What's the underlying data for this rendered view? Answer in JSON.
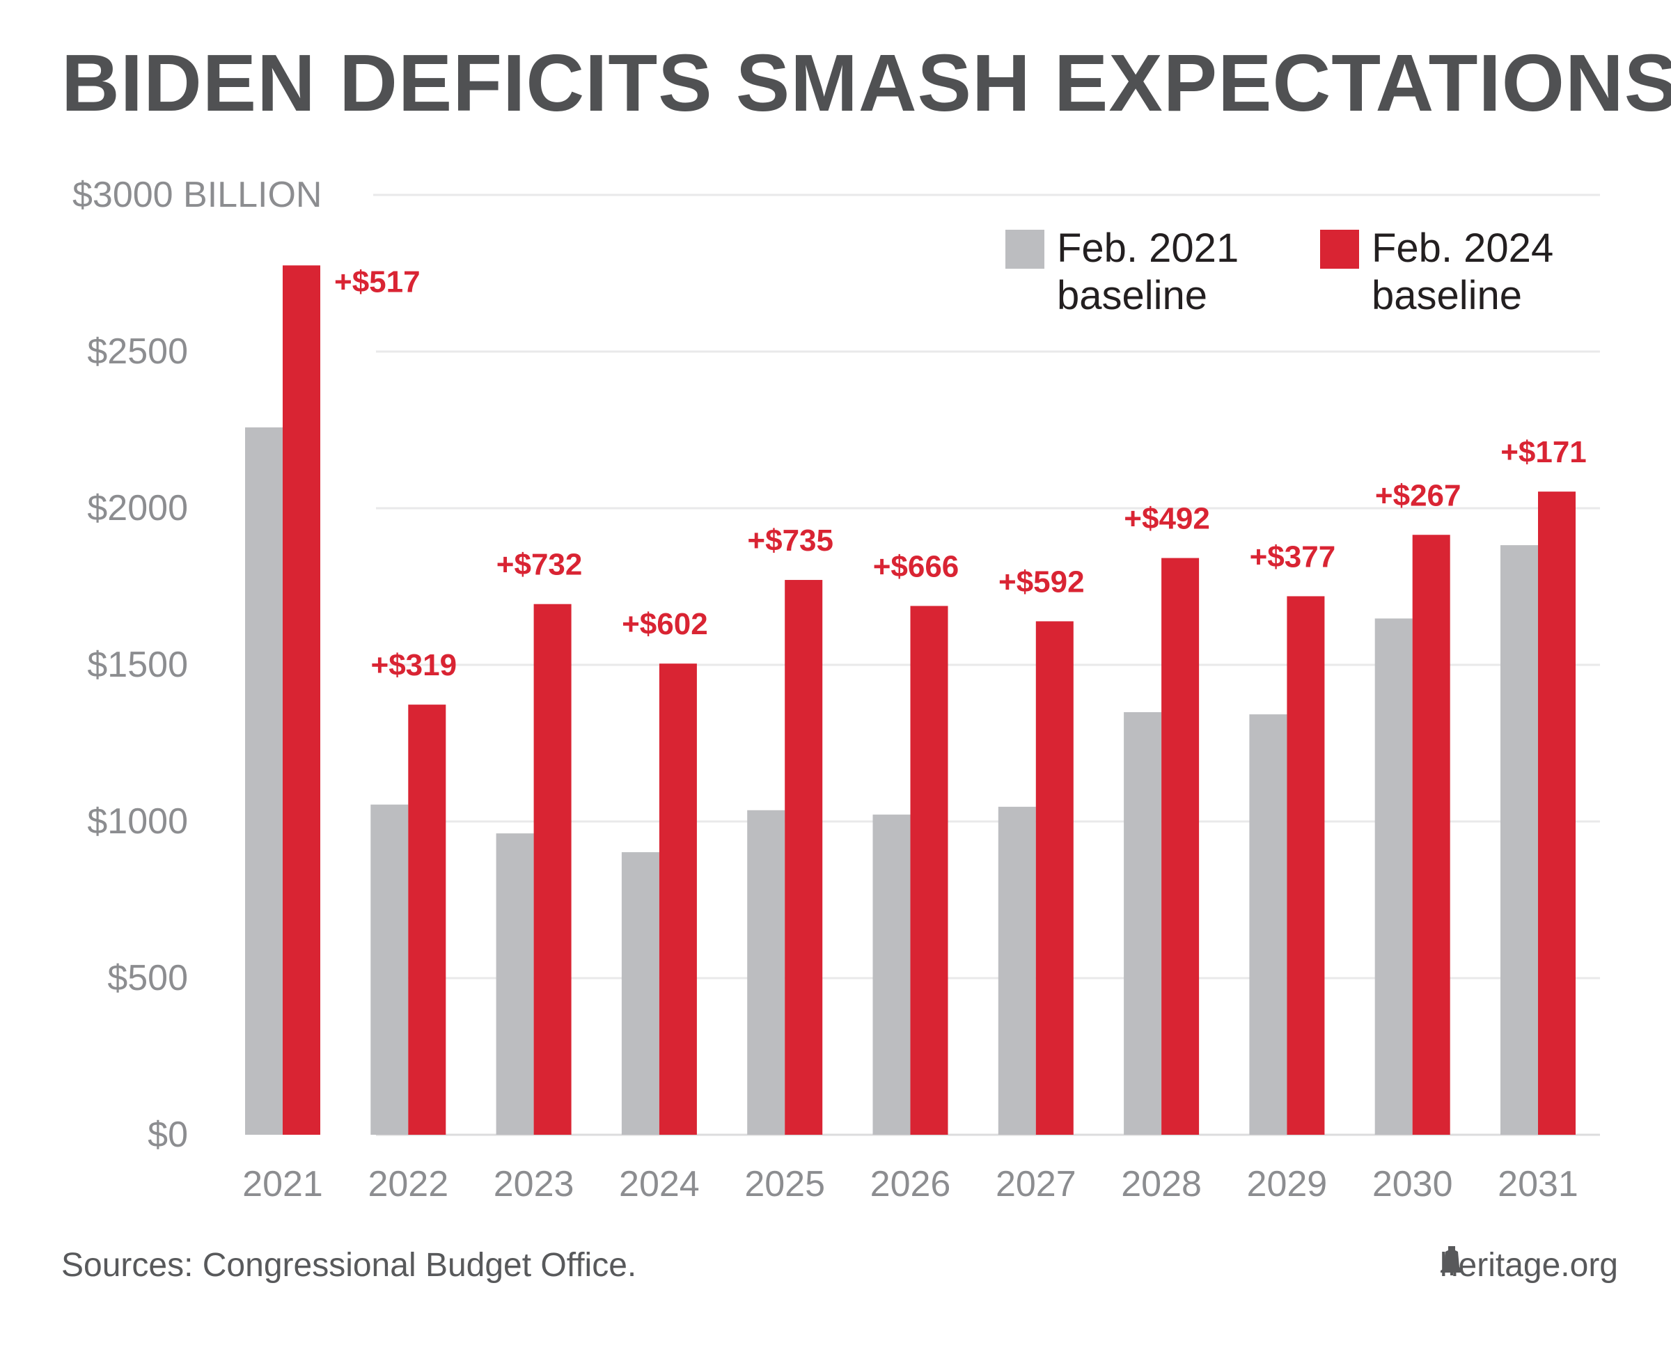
{
  "title": "BIDEN DEFICITS SMASH EXPECTATIONS",
  "source": "Sources: Congressional Budget Office.",
  "brand": {
    "text": "heritage.org",
    "icon": "liberty-bell-icon"
  },
  "colors": {
    "baseline2021": "#bcbdc0",
    "baseline2024": "#d92433",
    "text": "#58595b",
    "axis": "#8c8d90",
    "grid": "#e9e9ea"
  },
  "chart_data": {
    "type": "bar",
    "categories": [
      "2021",
      "2022",
      "2023",
      "2024",
      "2025",
      "2026",
      "2027",
      "2028",
      "2029",
      "2030",
      "2031"
    ],
    "series": [
      {
        "name": "Feb. 2021 baseline",
        "values": [
          2258,
          1054,
          962,
          902,
          1036,
          1022,
          1047,
          1349,
          1342,
          1648,
          1882
        ]
      },
      {
        "name": "Feb. 2024 baseline",
        "values": [
          2775,
          1373,
          1694,
          1504,
          1771,
          1688,
          1639,
          1841,
          1719,
          1915,
          2053
        ]
      }
    ],
    "annotations": [
      "+$517",
      "+$319",
      "+$732",
      "+$602",
      "+$735",
      "+$666",
      "+$592",
      "+$492",
      "+$377",
      "+$267",
      "+$171"
    ],
    "ylim": [
      0,
      3000
    ],
    "yticks": [
      {
        "value": 0,
        "label": "$0"
      },
      {
        "value": 500,
        "label": "$500"
      },
      {
        "value": 1000,
        "label": "$1000"
      },
      {
        "value": 1500,
        "label": "$1500"
      },
      {
        "value": 2000,
        "label": "$2000"
      },
      {
        "value": 2500,
        "label": "$2500"
      },
      {
        "value": 3000,
        "label": "$3000 BILLION"
      }
    ],
    "grid": true,
    "legend_position": "top-right"
  }
}
